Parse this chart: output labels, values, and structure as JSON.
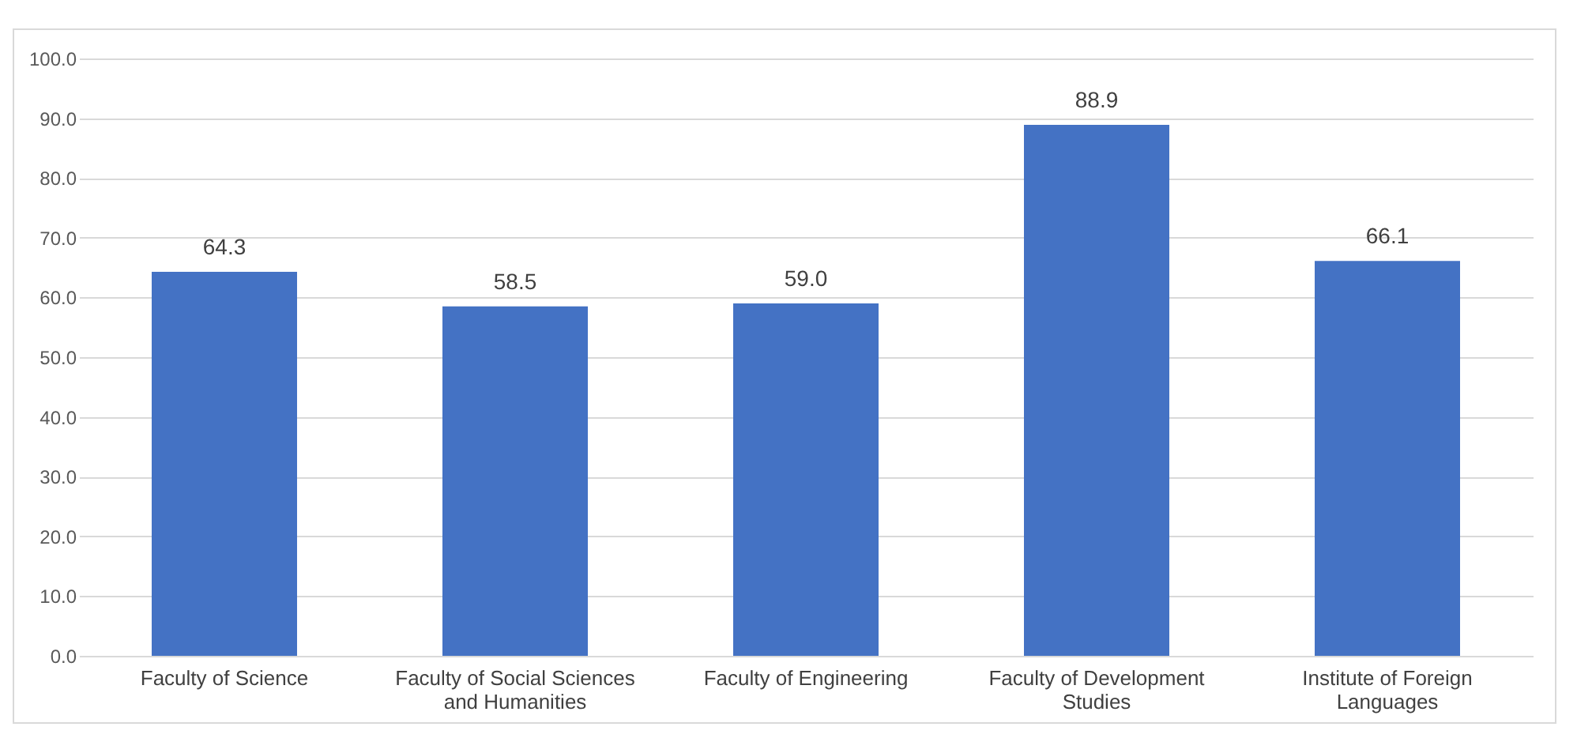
{
  "chart_data": {
    "type": "bar",
    "categories": [
      "Faculty of Science",
      "Faculty of Social Sciences and Humanities",
      "Faculty of Engineering",
      "Faculty of Development Studies",
      "Institute of Foreign Languages"
    ],
    "values": [
      64.3,
      58.5,
      59.0,
      88.9,
      66.1
    ],
    "color": "#4472c4",
    "value_labels": [
      "64.3",
      "58.5",
      "59.0",
      "88.9",
      "66.1"
    ],
    "grid": "y",
    "ylim": [
      0,
      100
    ],
    "yticks": [
      {
        "value": 0,
        "label": "0.0"
      },
      {
        "value": 10,
        "label": "10.0"
      },
      {
        "value": 20,
        "label": "20.0"
      },
      {
        "value": 30,
        "label": "30.0"
      },
      {
        "value": 40,
        "label": "40.0"
      },
      {
        "value": 50,
        "label": "50.0"
      },
      {
        "value": 60,
        "label": "60.0"
      },
      {
        "value": 70,
        "label": "70.0"
      },
      {
        "value": 80,
        "label": "80.0"
      },
      {
        "value": 90,
        "label": "90.0"
      },
      {
        "value": 100,
        "label": "100.0"
      }
    ]
  }
}
